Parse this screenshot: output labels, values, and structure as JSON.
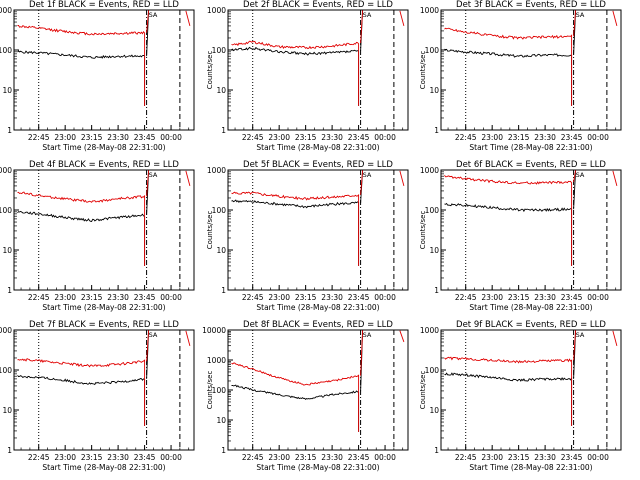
{
  "figure": {
    "x_ticks": [
      "22:45",
      "23:00",
      "23:15",
      "23:30",
      "23:45",
      "00:00"
    ],
    "y_ticks": [
      "1",
      "10",
      "100",
      "1000"
    ],
    "y_ticks_wide": [
      "1",
      "10",
      "100",
      "1000",
      "10000"
    ],
    "xlabel": "Start Time (28-May-08 22:31:00)",
    "ylabel": "Counts/sec",
    "marker_label": "SA"
  },
  "colors": {
    "events": "#000000",
    "lld": "#e00000",
    "axes": "#000000"
  },
  "chart_data": [
    {
      "type": "line",
      "title": "Det 1f BLACK = Events, RED = LLD",
      "ylim": [
        1,
        1000
      ],
      "y_scale": "log",
      "series": [
        {
          "name": "BLACK = Events",
          "x": [
            "22:33",
            "22:45",
            "23:00",
            "23:15",
            "23:30",
            "23:45"
          ],
          "values": [
            90,
            85,
            75,
            65,
            70,
            70
          ]
        },
        {
          "name": "RED = LLD",
          "x": [
            "22:33",
            "22:45",
            "23:00",
            "23:15",
            "23:30",
            "23:45"
          ],
          "values": [
            400,
            350,
            290,
            250,
            260,
            270
          ]
        }
      ]
    },
    {
      "type": "line",
      "title": "Det 2f BLACK = Events, RED = LLD",
      "ylim": [
        1,
        1000
      ],
      "y_scale": "log",
      "series": [
        {
          "name": "BLACK = Events",
          "x": [
            "22:33",
            "22:45",
            "23:00",
            "23:15",
            "23:30",
            "23:45"
          ],
          "values": [
            100,
            110,
            90,
            80,
            85,
            95
          ]
        },
        {
          "name": "RED = LLD",
          "x": [
            "22:33",
            "22:45",
            "23:00",
            "23:15",
            "23:30",
            "23:45"
          ],
          "values": [
            130,
            160,
            120,
            115,
            125,
            150
          ]
        }
      ]
    },
    {
      "type": "line",
      "title": "Det 3f BLACK = Events, RED = LLD",
      "ylim": [
        1,
        1000
      ],
      "y_scale": "log",
      "series": [
        {
          "name": "BLACK = Events",
          "x": [
            "22:33",
            "22:45",
            "23:00",
            "23:15",
            "23:30",
            "23:45"
          ],
          "values": [
            100,
            90,
            80,
            70,
            75,
            75
          ]
        },
        {
          "name": "RED = LLD",
          "x": [
            "22:33",
            "22:45",
            "23:00",
            "23:15",
            "23:30",
            "23:45"
          ],
          "values": [
            350,
            280,
            230,
            200,
            210,
            220
          ]
        }
      ]
    },
    {
      "type": "line",
      "title": "Det 4f BLACK = Events, RED = LLD",
      "ylim": [
        1,
        1000
      ],
      "y_scale": "log",
      "series": [
        {
          "name": "BLACK = Events",
          "x": [
            "22:33",
            "22:45",
            "23:00",
            "23:15",
            "23:30",
            "23:45"
          ],
          "values": [
            90,
            80,
            65,
            55,
            65,
            75
          ]
        },
        {
          "name": "RED = LLD",
          "x": [
            "22:33",
            "22:45",
            "23:00",
            "23:15",
            "23:30",
            "23:45"
          ],
          "values": [
            280,
            230,
            190,
            160,
            190,
            220
          ]
        }
      ]
    },
    {
      "type": "line",
      "title": "Det 5f BLACK = Events, RED = LLD",
      "ylim": [
        1,
        1000
      ],
      "y_scale": "log",
      "series": [
        {
          "name": "BLACK = Events",
          "x": [
            "22:33",
            "22:45",
            "23:00",
            "23:15",
            "23:30",
            "23:45"
          ],
          "values": [
            170,
            160,
            140,
            120,
            140,
            150
          ]
        },
        {
          "name": "RED = LLD",
          "x": [
            "22:33",
            "22:45",
            "23:00",
            "23:15",
            "23:30",
            "23:45"
          ],
          "values": [
            260,
            270,
            220,
            190,
            210,
            240
          ]
        }
      ]
    },
    {
      "type": "line",
      "title": "Det 6f BLACK = Events, RED = LLD",
      "ylim": [
        1,
        1000
      ],
      "y_scale": "log",
      "series": [
        {
          "name": "BLACK = Events",
          "x": [
            "22:33",
            "22:45",
            "23:00",
            "23:15",
            "23:30",
            "23:45"
          ],
          "values": [
            140,
            130,
            115,
            100,
            100,
            105
          ]
        },
        {
          "name": "RED = LLD",
          "x": [
            "22:33",
            "22:45",
            "23:00",
            "23:15",
            "23:30",
            "23:45"
          ],
          "values": [
            700,
            600,
            520,
            470,
            480,
            500
          ]
        }
      ]
    },
    {
      "type": "line",
      "title": "Det 7f BLACK = Events, RED = LLD",
      "ylim": [
        1,
        1000
      ],
      "y_scale": "log",
      "series": [
        {
          "name": "BLACK = Events",
          "x": [
            "22:33",
            "22:45",
            "23:00",
            "23:15",
            "23:30",
            "23:45"
          ],
          "values": [
            70,
            65,
            55,
            45,
            50,
            60
          ]
        },
        {
          "name": "RED = LLD",
          "x": [
            "22:33",
            "22:45",
            "23:00",
            "23:15",
            "23:30",
            "23:45"
          ],
          "values": [
            190,
            170,
            145,
            125,
            140,
            165
          ]
        }
      ]
    },
    {
      "type": "line",
      "title": "Det 8f BLACK = Events, RED = LLD",
      "ylim": [
        1,
        10000
      ],
      "y_scale": "log",
      "series": [
        {
          "name": "BLACK = Events",
          "x": [
            "22:33",
            "22:45",
            "23:00",
            "23:15",
            "23:30",
            "23:45"
          ],
          "values": [
            150,
            100,
            70,
            50,
            70,
            90
          ]
        },
        {
          "name": "RED = LLD",
          "x": [
            "22:33",
            "22:45",
            "23:00",
            "23:15",
            "23:30",
            "23:45"
          ],
          "values": [
            800,
            500,
            250,
            150,
            200,
            300
          ]
        }
      ]
    },
    {
      "type": "line",
      "title": "Det 9f BLACK = Events, RED = LLD",
      "ylim": [
        1,
        1000
      ],
      "y_scale": "log",
      "series": [
        {
          "name": "BLACK = Events",
          "x": [
            "22:33",
            "22:45",
            "23:00",
            "23:15",
            "23:30",
            "23:45"
          ],
          "values": [
            80,
            75,
            65,
            55,
            60,
            60
          ]
        },
        {
          "name": "RED = LLD",
          "x": [
            "22:33",
            "22:45",
            "23:00",
            "23:15",
            "23:30",
            "23:45"
          ],
          "values": [
            200,
            190,
            175,
            160,
            170,
            175
          ]
        }
      ]
    }
  ]
}
